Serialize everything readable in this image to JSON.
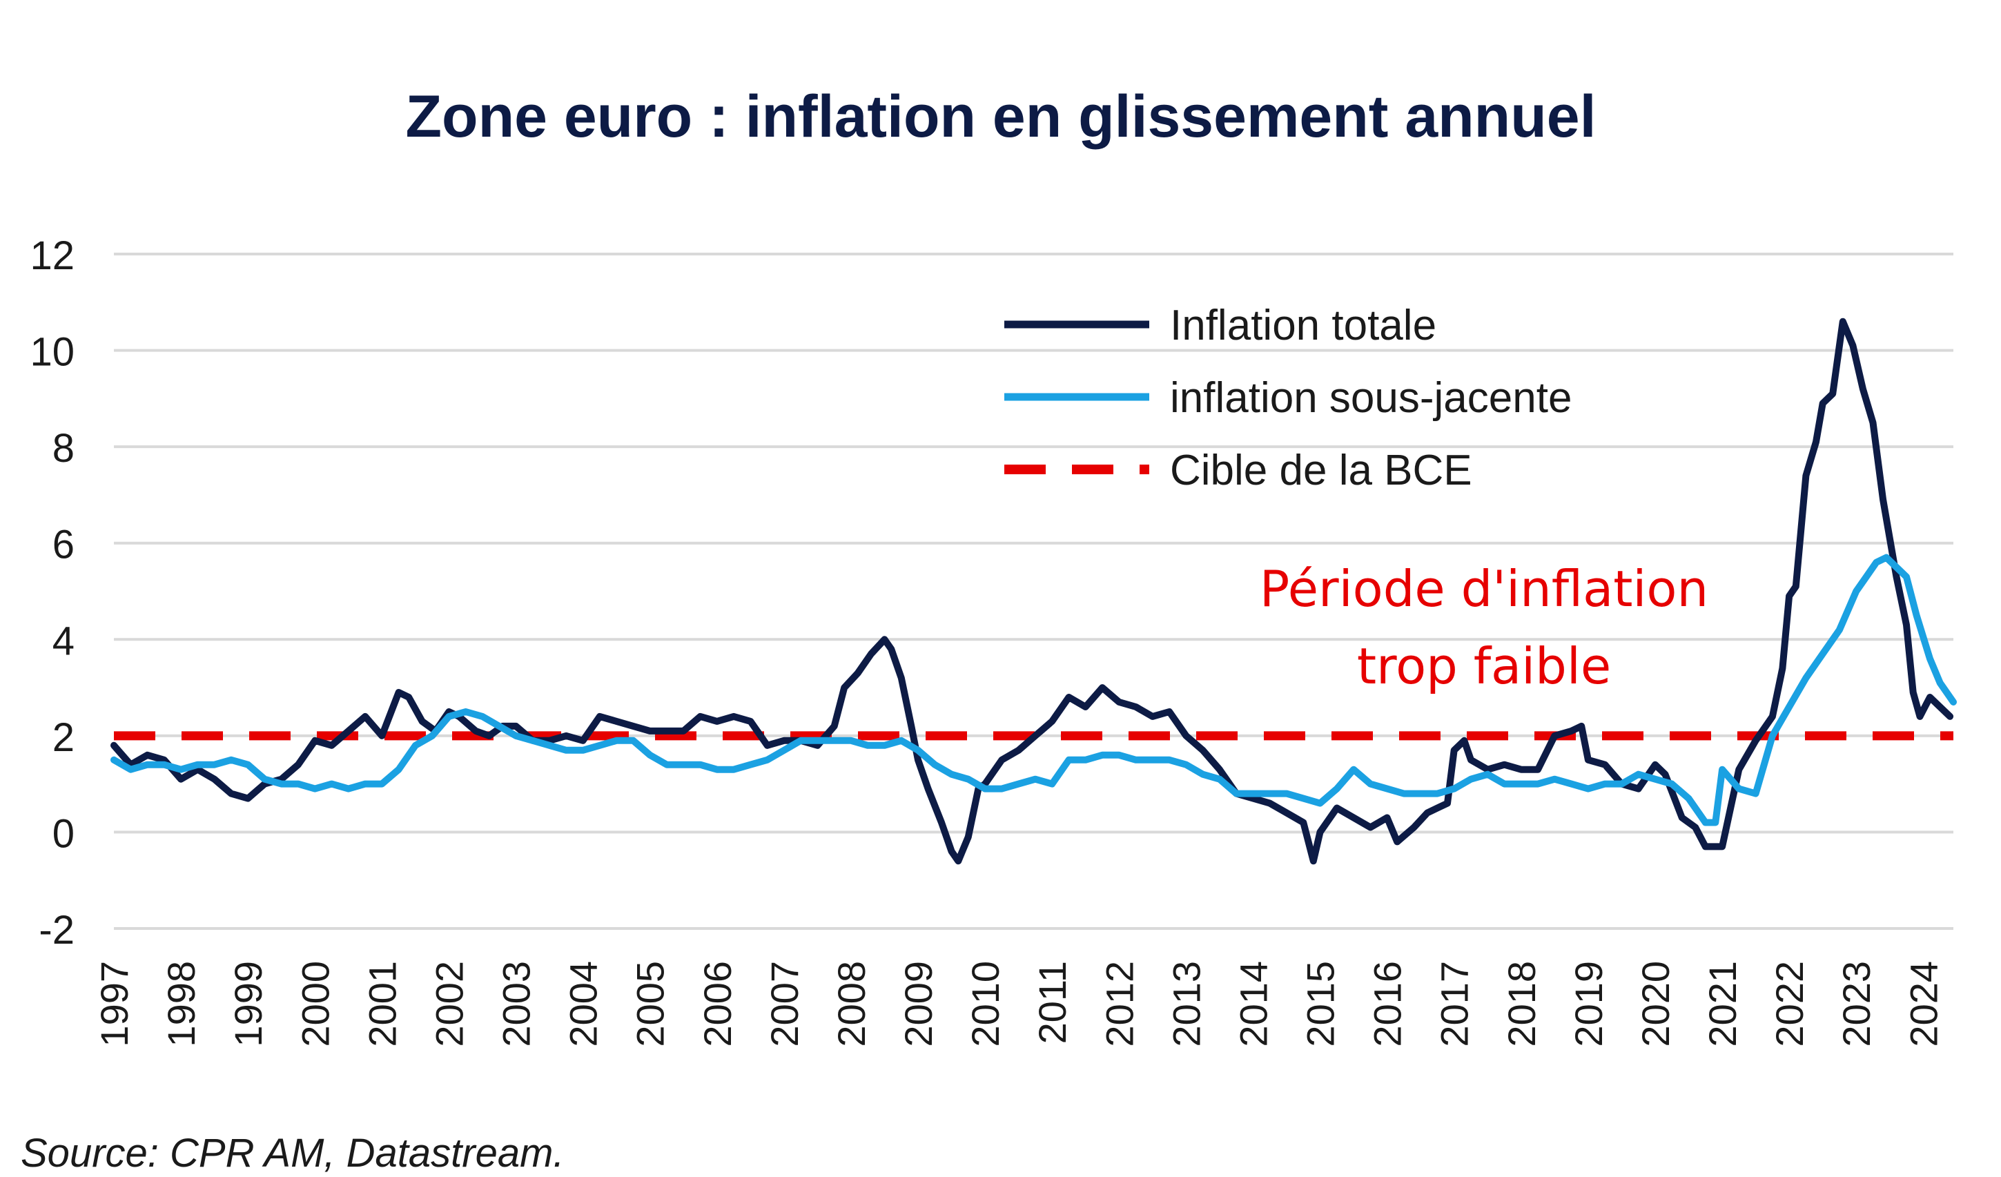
{
  "chart_data": {
    "type": "line",
    "title": "Zone euro : inflation en glissement annuel",
    "source": "Source: CPR AM, Datastream.",
    "annotation": [
      "Période d'inflation",
      "trop faible"
    ],
    "xlabel": "",
    "ylabel": "",
    "xlim": [
      1997,
      2024.45
    ],
    "ylim": [
      -2,
      12
    ],
    "y_ticks": [
      "-2",
      "0",
      "2",
      "4",
      "6",
      "8",
      "10",
      "12"
    ],
    "x_ticks": [
      "1997",
      "1998",
      "1999",
      "2000",
      "2001",
      "2002",
      "2003",
      "2004",
      "2005",
      "2006",
      "2007",
      "2008",
      "2009",
      "2010",
      "2011",
      "2012",
      "2013",
      "2014",
      "2015",
      "2016",
      "2017",
      "2018",
      "2019",
      "2020",
      "2021",
      "2022",
      "2023",
      "2024"
    ],
    "grid": true,
    "legend_position": "top-right",
    "series": [
      {
        "name": "Inflation totale",
        "color": "#0d1b45",
        "x": [
          1997.0,
          1997.25,
          1997.5,
          1997.75,
          1998.0,
          1998.25,
          1998.5,
          1998.75,
          1999.0,
          1999.25,
          1999.5,
          1999.75,
          2000.0,
          2000.25,
          2000.5,
          2000.75,
          2001.0,
          2001.25,
          2001.4,
          2001.6,
          2001.8,
          2002.0,
          2002.15,
          2002.4,
          2002.6,
          2002.8,
          2003.0,
          2003.25,
          2003.5,
          2003.75,
          2004.0,
          2004.25,
          2004.5,
          2004.75,
          2005.0,
          2005.25,
          2005.5,
          2005.75,
          2006.0,
          2006.25,
          2006.5,
          2006.75,
          2007.0,
          2007.25,
          2007.5,
          2007.75,
          2007.9,
          2008.1,
          2008.3,
          2008.5,
          2008.6,
          2008.75,
          2008.9,
          2009.0,
          2009.15,
          2009.35,
          2009.5,
          2009.6,
          2009.75,
          2009.9,
          2010.0,
          2010.25,
          2010.5,
          2010.75,
          2011.0,
          2011.25,
          2011.5,
          2011.75,
          2012.0,
          2012.25,
          2012.5,
          2012.75,
          2013.0,
          2013.25,
          2013.5,
          2013.75,
          2014.0,
          2014.25,
          2014.5,
          2014.75,
          2014.9,
          2015.0,
          2015.25,
          2015.5,
          2015.75,
          2016.0,
          2016.15,
          2016.4,
          2016.6,
          2016.75,
          2016.9,
          2017.0,
          2017.15,
          2017.25,
          2017.5,
          2017.75,
          2018.0,
          2018.25,
          2018.5,
          2018.75,
          2018.9,
          2019.0,
          2019.25,
          2019.5,
          2019.75,
          2020.0,
          2020.15,
          2020.4,
          2020.6,
          2020.75,
          2020.9,
          2021.0,
          2021.25,
          2021.5,
          2021.75,
          2021.9,
          2022.0,
          2022.1,
          2022.25,
          2022.4,
          2022.5,
          2022.65,
          2022.8,
          2022.95,
          2023.1,
          2023.25,
          2023.4,
          2023.6,
          2023.75,
          2023.85,
          2023.95,
          2024.1,
          2024.25,
          2024.4
        ],
        "values": [
          1.8,
          1.4,
          1.6,
          1.5,
          1.1,
          1.3,
          1.1,
          0.8,
          0.7,
          1.0,
          1.1,
          1.4,
          1.9,
          1.8,
          2.1,
          2.4,
          2.0,
          2.9,
          2.8,
          2.3,
          2.1,
          2.5,
          2.4,
          2.1,
          2.0,
          2.2,
          2.2,
          1.9,
          1.9,
          2.0,
          1.9,
          2.4,
          2.3,
          2.2,
          2.1,
          2.1,
          2.1,
          2.4,
          2.3,
          2.4,
          2.3,
          1.8,
          1.9,
          1.9,
          1.8,
          2.2,
          3.0,
          3.3,
          3.7,
          4.0,
          3.8,
          3.2,
          2.2,
          1.5,
          0.9,
          0.2,
          -0.4,
          -0.6,
          -0.1,
          0.9,
          1.0,
          1.5,
          1.7,
          2.0,
          2.3,
          2.8,
          2.6,
          3.0,
          2.7,
          2.6,
          2.4,
          2.5,
          2.0,
          1.7,
          1.3,
          0.8,
          0.7,
          0.6,
          0.4,
          0.2,
          -0.6,
          0.0,
          0.5,
          0.3,
          0.1,
          0.3,
          -0.2,
          0.1,
          0.4,
          0.5,
          0.6,
          1.7,
          1.9,
          1.5,
          1.3,
          1.4,
          1.3,
          1.3,
          2.0,
          2.1,
          2.2,
          1.5,
          1.4,
          1.0,
          0.9,
          1.4,
          1.2,
          0.3,
          0.1,
          -0.3,
          -0.3,
          -0.3,
          1.3,
          1.9,
          2.4,
          3.4,
          4.9,
          5.1,
          7.4,
          8.1,
          8.9,
          9.1,
          10.6,
          10.1,
          9.2,
          8.5,
          6.9,
          5.3,
          4.3,
          2.9,
          2.4,
          2.8,
          2.6,
          2.4
        ]
      },
      {
        "name": "inflation sous-jacente",
        "color": "#1ba1e2",
        "x": [
          1997.0,
          1997.25,
          1997.5,
          1997.75,
          1998.0,
          1998.25,
          1998.5,
          1998.75,
          1999.0,
          1999.25,
          1999.5,
          1999.75,
          2000.0,
          2000.25,
          2000.5,
          2000.75,
          2001.0,
          2001.25,
          2001.5,
          2001.75,
          2002.0,
          2002.25,
          2002.5,
          2002.75,
          2003.0,
          2003.25,
          2003.5,
          2003.75,
          2004.0,
          2004.25,
          2004.5,
          2004.75,
          2005.0,
          2005.25,
          2005.5,
          2005.75,
          2006.0,
          2006.25,
          2006.5,
          2006.75,
          2007.0,
          2007.25,
          2007.5,
          2007.75,
          2008.0,
          2008.25,
          2008.5,
          2008.75,
          2009.0,
          2009.25,
          2009.5,
          2009.75,
          2010.0,
          2010.25,
          2010.5,
          2010.75,
          2011.0,
          2011.25,
          2011.5,
          2011.75,
          2012.0,
          2012.25,
          2012.5,
          2012.75,
          2013.0,
          2013.25,
          2013.5,
          2013.75,
          2014.0,
          2014.25,
          2014.5,
          2014.75,
          2015.0,
          2015.25,
          2015.5,
          2015.75,
          2016.0,
          2016.25,
          2016.5,
          2016.75,
          2017.0,
          2017.25,
          2017.5,
          2017.75,
          2018.0,
          2018.25,
          2018.5,
          2018.75,
          2019.0,
          2019.25,
          2019.5,
          2019.75,
          2020.0,
          2020.25,
          2020.5,
          2020.75,
          2020.9,
          2021.0,
          2021.25,
          2021.5,
          2021.75,
          2022.0,
          2022.25,
          2022.5,
          2022.75,
          2023.0,
          2023.15,
          2023.3,
          2023.45,
          2023.6,
          2023.75,
          2023.9,
          2024.1,
          2024.25,
          2024.45
        ],
        "values": [
          1.5,
          1.3,
          1.4,
          1.4,
          1.3,
          1.4,
          1.4,
          1.5,
          1.4,
          1.1,
          1.0,
          1.0,
          0.9,
          1.0,
          0.9,
          1.0,
          1.0,
          1.3,
          1.8,
          2.0,
          2.4,
          2.5,
          2.4,
          2.2,
          2.0,
          1.9,
          1.8,
          1.7,
          1.7,
          1.8,
          1.9,
          1.9,
          1.6,
          1.4,
          1.4,
          1.4,
          1.3,
          1.3,
          1.4,
          1.5,
          1.7,
          1.9,
          1.9,
          1.9,
          1.9,
          1.8,
          1.8,
          1.9,
          1.7,
          1.4,
          1.2,
          1.1,
          0.9,
          0.9,
          1.0,
          1.1,
          1.0,
          1.5,
          1.5,
          1.6,
          1.6,
          1.5,
          1.5,
          1.5,
          1.4,
          1.2,
          1.1,
          0.8,
          0.8,
          0.8,
          0.8,
          0.7,
          0.6,
          0.9,
          1.3,
          1.0,
          0.9,
          0.8,
          0.8,
          0.8,
          0.9,
          1.1,
          1.2,
          1.0,
          1.0,
          1.0,
          1.1,
          1.0,
          0.9,
          1.0,
          1.0,
          1.2,
          1.1,
          1.0,
          0.7,
          0.2,
          0.2,
          1.3,
          0.9,
          0.8,
          2.0,
          2.6,
          3.2,
          3.7,
          4.2,
          5.0,
          5.3,
          5.6,
          5.7,
          5.5,
          5.3,
          4.5,
          3.6,
          3.1,
          2.7
        ]
      },
      {
        "name": "Cible de la BCE",
        "color": "#e60000",
        "x": [
          1997.0,
          2024.45
        ],
        "values": [
          2,
          2
        ]
      }
    ]
  }
}
